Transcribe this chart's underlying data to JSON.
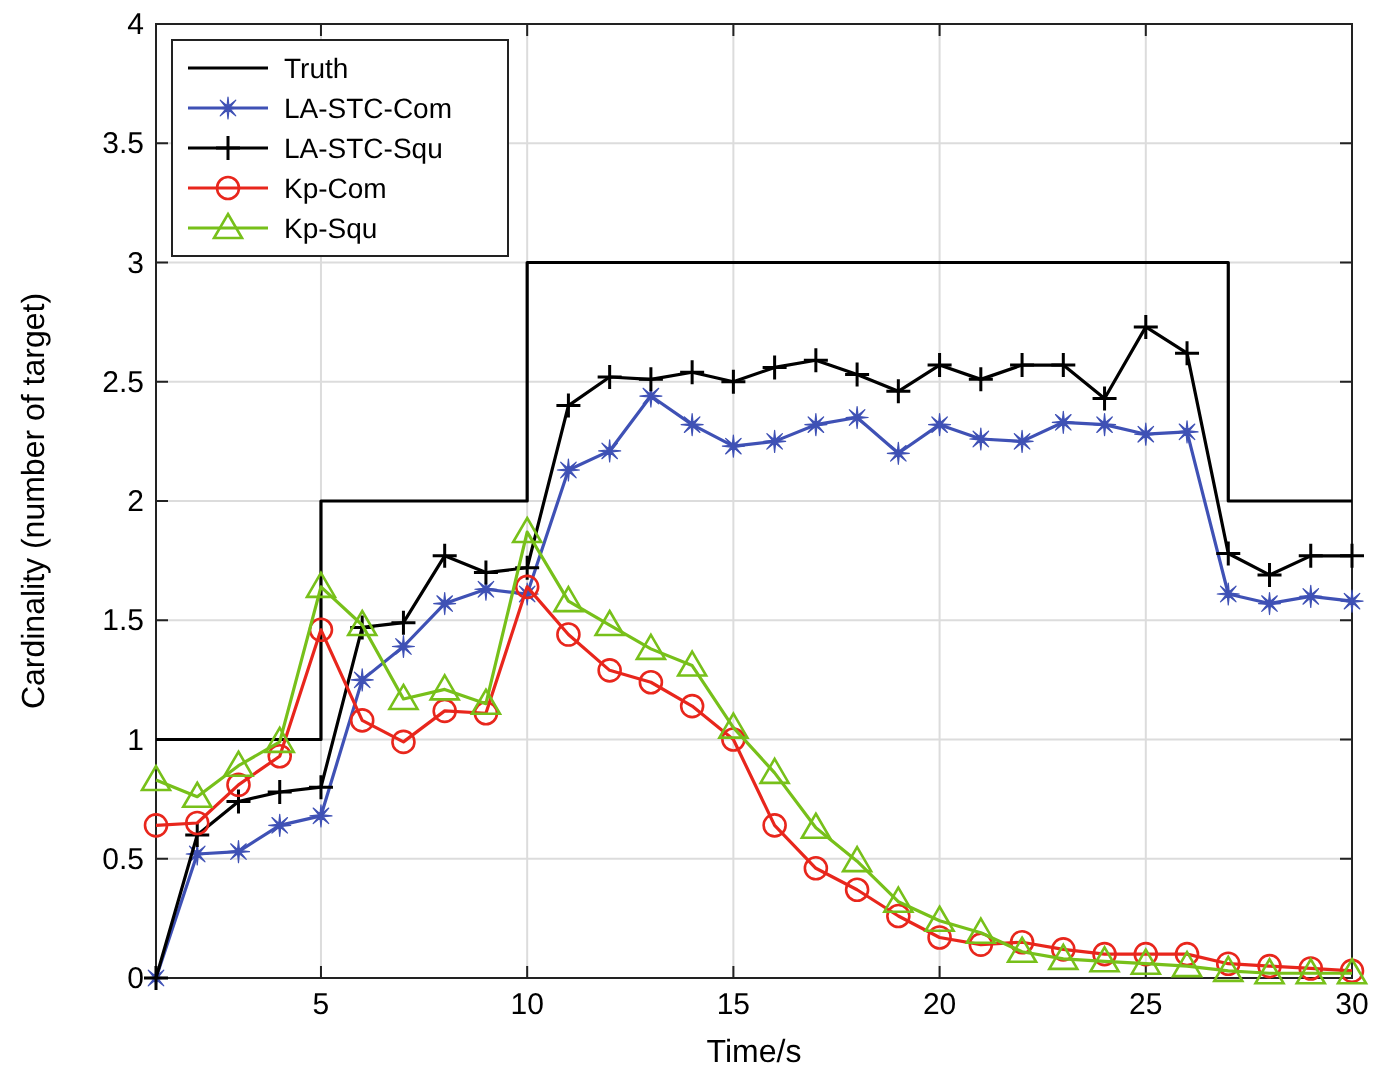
{
  "chart_data": {
    "type": "line",
    "xlabel": "Time/s",
    "ylabel": "Cardinality (number of target)",
    "x": [
      1,
      2,
      3,
      4,
      5,
      6,
      7,
      8,
      9,
      10,
      11,
      12,
      13,
      14,
      15,
      16,
      17,
      18,
      19,
      20,
      21,
      22,
      23,
      24,
      25,
      26,
      27,
      28,
      29,
      30
    ],
    "xlim": [
      1,
      30
    ],
    "xticks": [
      5,
      10,
      15,
      20,
      25,
      30
    ],
    "ylim": [
      0,
      4
    ],
    "yticks": [
      0,
      0.5,
      1,
      1.5,
      2,
      2.5,
      3,
      3.5,
      4
    ],
    "grid": true,
    "legend": "top left",
    "series": [
      {
        "name": "Truth",
        "type": "step",
        "color": "#000000",
        "marker": "none",
        "values": [
          1,
          1,
          1,
          1,
          2,
          2,
          2,
          2,
          2,
          3,
          3,
          3,
          3,
          3,
          3,
          3,
          3,
          3,
          3,
          3,
          3,
          3,
          3,
          3,
          3,
          3,
          2,
          2,
          2,
          2
        ]
      },
      {
        "name": "LA-STC-Com",
        "color": "#3f51b5",
        "marker": "star",
        "values": [
          0,
          0.52,
          0.53,
          0.64,
          0.68,
          1.25,
          1.39,
          1.57,
          1.63,
          1.61,
          2.13,
          2.21,
          2.44,
          2.32,
          2.23,
          2.25,
          2.32,
          2.35,
          2.2,
          2.32,
          2.26,
          2.25,
          2.33,
          2.32,
          2.28,
          2.29,
          1.61,
          1.57,
          1.6,
          1.58
        ]
      },
      {
        "name": "LA-STC-Squ",
        "color": "#000000",
        "marker": "cross",
        "values": [
          0,
          0.6,
          0.74,
          0.78,
          0.8,
          1.47,
          1.49,
          1.77,
          1.7,
          1.72,
          2.4,
          2.52,
          2.51,
          2.54,
          2.5,
          2.56,
          2.59,
          2.53,
          2.46,
          2.57,
          2.51,
          2.57,
          2.57,
          2.43,
          2.73,
          2.62,
          1.78,
          1.69,
          1.77,
          1.77
        ]
      },
      {
        "name": "Kp-Com",
        "color": "#e8261c",
        "marker": "circle",
        "values": [
          0.64,
          0.65,
          0.81,
          0.93,
          1.46,
          1.08,
          0.99,
          1.12,
          1.11,
          1.64,
          1.44,
          1.29,
          1.24,
          1.14,
          1,
          0.64,
          0.46,
          0.37,
          0.26,
          0.17,
          0.14,
          0.15,
          0.12,
          0.1,
          0.1,
          0.1,
          0.06,
          0.05,
          0.04,
          0.03
        ]
      },
      {
        "name": "Kp-Squ",
        "color": "#77c01a",
        "marker": "triangle",
        "values": [
          0.83,
          0.76,
          0.89,
          0.99,
          1.64,
          1.48,
          1.17,
          1.21,
          1.15,
          1.87,
          1.58,
          1.48,
          1.38,
          1.31,
          1.05,
          0.86,
          0.63,
          0.49,
          0.32,
          0.24,
          0.19,
          0.11,
          0.08,
          0.07,
          0.06,
          0.05,
          0.03,
          0.02,
          0.02,
          0.02
        ]
      }
    ]
  }
}
